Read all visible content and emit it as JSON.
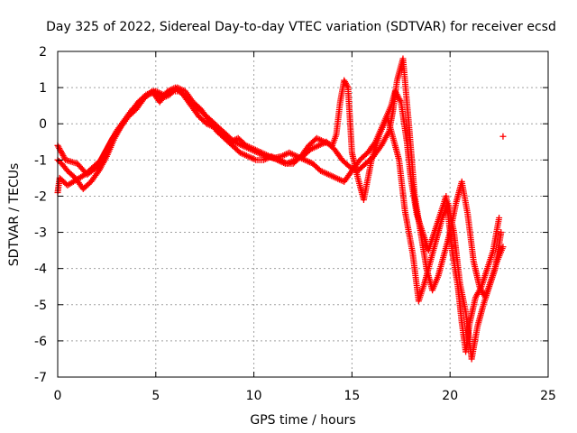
{
  "chart_data": {
    "type": "scatter",
    "title": "Day 325 of 2022, Sidereal Day-to-day VTEC variation (SDTVAR) for receiver ecsd",
    "xlabel": "GPS time / hours",
    "ylabel": "SDTVAR / TECUs",
    "xlim": [
      0,
      25
    ],
    "ylim": [
      -7,
      2
    ],
    "xticks": [
      "0",
      "5",
      "10",
      "15",
      "20",
      "25"
    ],
    "yticks": [
      "2",
      "1",
      "0",
      "-1",
      "-2",
      "-3",
      "-4",
      "-5",
      "-6",
      "-7"
    ],
    "grid": true,
    "marker": "plus",
    "marker_color": "#ff0000",
    "series": [
      {
        "x": [
          0.0,
          0.1,
          0.3,
          0.5,
          0.8,
          1.1,
          1.4,
          1.8,
          2.2,
          2.6,
          3.0,
          3.4,
          3.8,
          4.2,
          4.6,
          5.0,
          5.4,
          5.8,
          6.2,
          6.6,
          7.0,
          7.4,
          7.8,
          8.2,
          8.6,
          9.0,
          9.4,
          9.8,
          10.2,
          10.6,
          11.0,
          11.4,
          11.8,
          12.2,
          12.6,
          13.0,
          13.4,
          13.8,
          14.2,
          14.6,
          15.0,
          15.4,
          15.8,
          16.2,
          16.6,
          17.0,
          17.2,
          17.5,
          17.8,
          18.0,
          18.3,
          18.6,
          18.9,
          19.2,
          19.5,
          19.8,
          20.1,
          20.4,
          20.6,
          20.8,
          21.0,
          21.3,
          21.6,
          21.9,
          22.2,
          22.5
        ],
        "y": [
          -1.9,
          -1.5,
          -1.6,
          -1.7,
          -1.6,
          -1.5,
          -1.4,
          -1.2,
          -1.0,
          -0.6,
          -0.2,
          0.1,
          0.4,
          0.6,
          0.8,
          0.9,
          0.8,
          0.9,
          0.9,
          0.7,
          0.5,
          0.3,
          0.1,
          -0.1,
          -0.3,
          -0.5,
          -0.6,
          -0.7,
          -0.8,
          -0.9,
          -0.95,
          -0.9,
          -0.8,
          -0.9,
          -1.0,
          -1.1,
          -1.3,
          -1.4,
          -1.5,
          -1.6,
          -1.3,
          -1.0,
          -0.8,
          -0.5,
          0.0,
          0.5,
          0.9,
          0.6,
          -0.5,
          -1.5,
          -2.5,
          -3.0,
          -3.5,
          -3.0,
          -2.5,
          -2.0,
          -3.5,
          -4.5,
          -5.5,
          -6.3,
          -5.5,
          -4.8,
          -4.5,
          -4.0,
          -3.5,
          -2.6
        ]
      },
      {
        "x": [
          0.0,
          0.2,
          0.5,
          0.9,
          1.3,
          1.7,
          2.1,
          2.5,
          2.9,
          3.3,
          3.7,
          4.1,
          4.5,
          4.9,
          5.3,
          5.7,
          6.1,
          6.5,
          6.9,
          7.3,
          7.7,
          8.1,
          8.5,
          8.9,
          9.3,
          9.7,
          10.1,
          10.5,
          10.9,
          11.3,
          11.7,
          12.1,
          12.5,
          12.9,
          13.3,
          13.7,
          14.1,
          14.5,
          14.9,
          15.3,
          15.7,
          16.1,
          16.5,
          16.9,
          17.1,
          17.3,
          17.6,
          17.9,
          18.2,
          18.5,
          18.8,
          19.1,
          19.4,
          19.7,
          20.0,
          20.3,
          20.6,
          20.9,
          21.2,
          21.5,
          21.8,
          22.1,
          22.4,
          22.7
        ],
        "y": [
          -1.0,
          -1.1,
          -1.3,
          -1.5,
          -1.8,
          -1.6,
          -1.3,
          -0.9,
          -0.4,
          0.0,
          0.3,
          0.6,
          0.8,
          0.9,
          0.7,
          0.8,
          1.0,
          0.9,
          0.6,
          0.4,
          0.1,
          -0.2,
          -0.4,
          -0.6,
          -0.8,
          -0.9,
          -1.0,
          -1.0,
          -0.9,
          -1.0,
          -1.1,
          -1.0,
          -0.9,
          -0.7,
          -0.6,
          -0.5,
          -0.7,
          -1.0,
          -1.2,
          -1.3,
          -1.1,
          -0.9,
          -0.6,
          -0.2,
          0.4,
          1.2,
          1.8,
          0.0,
          -2.0,
          -3.0,
          -4.0,
          -4.6,
          -4.2,
          -3.6,
          -3.0,
          -2.2,
          -1.6,
          -2.5,
          -3.8,
          -4.5,
          -4.8,
          -4.3,
          -3.8,
          -3.4
        ]
      },
      {
        "x": [
          0.0,
          0.2,
          0.4,
          1.0,
          1.5,
          2.0,
          2.4,
          2.8,
          3.2,
          3.6,
          4.0,
          4.4,
          4.8,
          5.2,
          5.6,
          6.0,
          6.4,
          6.8,
          7.2,
          7.6,
          8.0,
          8.4,
          8.8,
          9.2,
          9.6,
          10.0,
          10.4,
          10.8,
          11.2,
          11.6,
          12.0,
          12.4,
          12.8,
          13.2,
          13.6,
          14.0,
          14.2,
          14.4,
          14.6,
          14.8,
          15.0,
          15.3,
          15.6,
          16.0,
          16.4,
          16.8,
          17.0,
          17.4,
          17.7,
          18.1,
          18.4,
          18.7,
          19.0,
          19.3,
          19.6,
          19.9,
          20.2,
          20.5,
          20.8,
          21.1,
          21.4,
          21.7,
          22.0,
          22.3,
          22.6
        ],
        "y": [
          -0.6,
          -0.8,
          -1.0,
          -1.1,
          -1.4,
          -1.2,
          -0.8,
          -0.4,
          -0.1,
          0.2,
          0.4,
          0.7,
          0.9,
          0.6,
          0.9,
          1.0,
          0.8,
          0.5,
          0.2,
          0.0,
          -0.1,
          -0.3,
          -0.5,
          -0.4,
          -0.6,
          -0.7,
          -0.8,
          -0.9,
          -1.0,
          -1.1,
          -1.1,
          -0.9,
          -0.6,
          -0.4,
          -0.5,
          -0.6,
          -0.3,
          0.6,
          1.2,
          1.0,
          -0.8,
          -1.5,
          -2.1,
          -1.0,
          -0.3,
          0.2,
          -0.2,
          -1.0,
          -2.4,
          -3.6,
          -4.9,
          -4.4,
          -3.8,
          -3.2,
          -2.6,
          -2.2,
          -3.0,
          -4.4,
          -5.2,
          -6.5,
          -5.6,
          -5.0,
          -4.5,
          -4.0,
          -3.0
        ]
      },
      {
        "x": [
          22.7
        ],
        "y": [
          -0.35
        ]
      }
    ]
  }
}
